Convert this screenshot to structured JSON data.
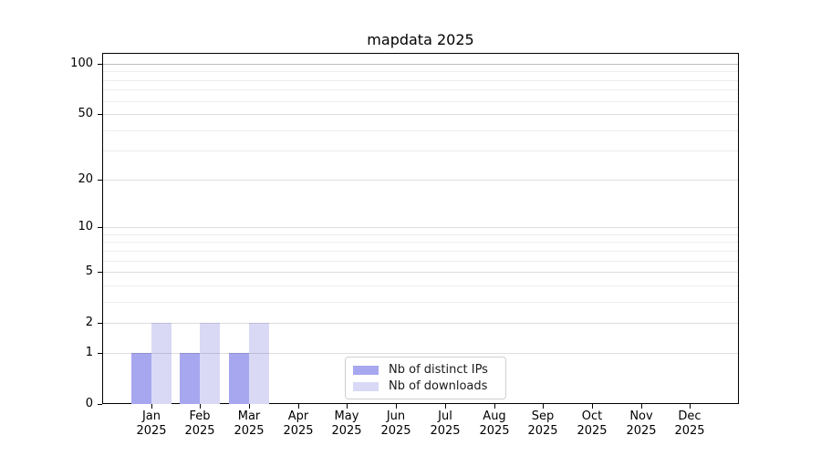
{
  "figure": {
    "background": "#ffffff"
  },
  "chart_data": {
    "type": "bar",
    "title": "mapdata 2025",
    "categories": [
      {
        "month": "Jan",
        "year": "2025"
      },
      {
        "month": "Feb",
        "year": "2025"
      },
      {
        "month": "Mar",
        "year": "2025"
      },
      {
        "month": "Apr",
        "year": "2025"
      },
      {
        "month": "May",
        "year": "2025"
      },
      {
        "month": "Jun",
        "year": "2025"
      },
      {
        "month": "Jul",
        "year": "2025"
      },
      {
        "month": "Aug",
        "year": "2025"
      },
      {
        "month": "Sep",
        "year": "2025"
      },
      {
        "month": "Oct",
        "year": "2025"
      },
      {
        "month": "Nov",
        "year": "2025"
      },
      {
        "month": "Dec",
        "year": "2025"
      }
    ],
    "series": [
      {
        "name": "Nb of distinct IPs",
        "color": "#a7a7f0",
        "values": [
          1,
          1,
          1,
          0,
          0,
          0,
          0,
          0,
          0,
          0,
          0,
          0
        ]
      },
      {
        "name": "Nb of downloads",
        "color": "#d9d9f6",
        "values": [
          2,
          2,
          2,
          0,
          0,
          0,
          0,
          0,
          0,
          0,
          0,
          0
        ]
      }
    ],
    "yscale": "log10(value+1)",
    "yticks": [
      0,
      1,
      2,
      5,
      10,
      20,
      50,
      100
    ],
    "minor_yticks": [
      3,
      4,
      6,
      7,
      8,
      9,
      30,
      40,
      60,
      70,
      80,
      90
    ],
    "ylim": [
      0,
      116
    ],
    "xlabel": "",
    "ylabel": "",
    "grid": "on",
    "legend_position": "lower center, inside plot",
    "colors": {
      "minor_grid": "rgba(0,0,0,0.07)",
      "major_grid": "rgba(0,0,0,0.13)",
      "top_grid": "rgba(0,0,0,0.26)",
      "spine": "#000000",
      "tick_text": "#000000",
      "legend_border": "#cfcfcf"
    }
  }
}
